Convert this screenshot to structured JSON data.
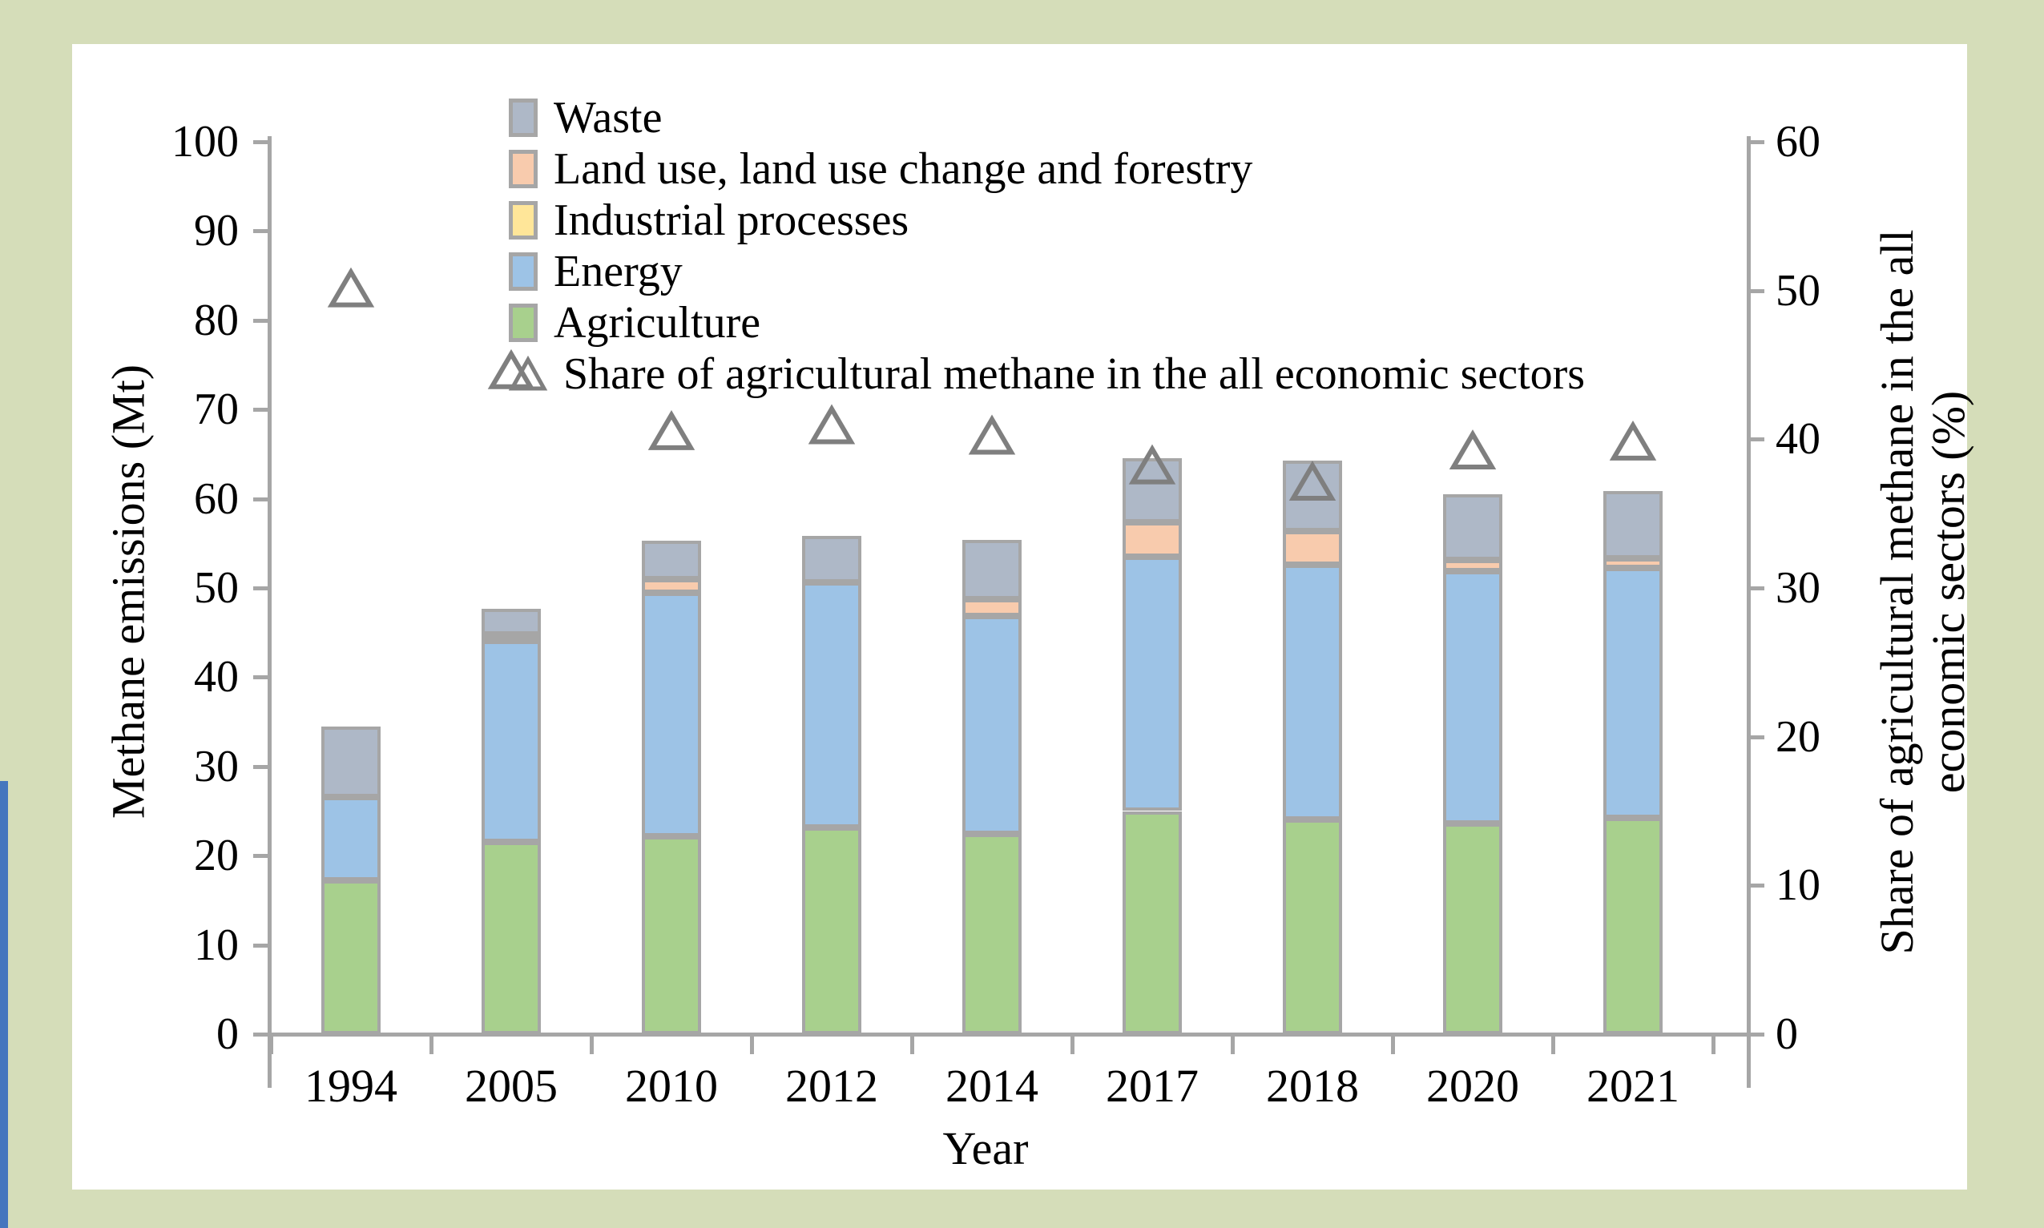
{
  "page": {
    "background": "#d5ddb9",
    "card_background": "#ffffff",
    "left_edge_accent_color": "#4576be"
  },
  "chart_data": {
    "type": "bar",
    "subtype": "stacked-bar-with-scatter-overlay",
    "title": "",
    "xlabel": "Year",
    "ylabel_left": "Methane emissions (Mt)",
    "ylabel_right_line1": "Share of agricultural methane in the all",
    "ylabel_right_line2": "economic sectors (%)",
    "categories": [
      "1994",
      "2005",
      "2010",
      "2012",
      "2014",
      "2017",
      "2018",
      "2020",
      "2021"
    ],
    "series": [
      {
        "name": "Agriculture",
        "color": "#a8d08d",
        "values": [
          17.2,
          21.5,
          22.2,
          23.2,
          22.4,
          25.0,
          24.1,
          23.6,
          24.2
        ]
      },
      {
        "name": "Energy",
        "color": "#9dc3e6",
        "values": [
          9.4,
          22.6,
          27.3,
          27.4,
          24.5,
          28.5,
          28.5,
          28.3,
          28.0
        ]
      },
      {
        "name": "Industrial processes",
        "color": "#ffe699",
        "values": [
          0,
          0,
          0,
          0,
          0,
          0,
          0,
          0,
          0
        ]
      },
      {
        "name": "Land use, land use change and forestry",
        "color": "#f8cbad",
        "values": [
          0,
          0.7,
          1.5,
          0,
          1.8,
          3.9,
          3.8,
          1.2,
          1.1
        ]
      },
      {
        "name": "Waste",
        "color": "#aeb8c7",
        "values": [
          7.9,
          2.9,
          4.3,
          5.2,
          6.7,
          7.1,
          7.9,
          7.4,
          7.6
        ]
      }
    ],
    "bar_totals": [
      34.5,
      47.7,
      55.3,
      55.8,
      55.4,
      64.5,
      64.3,
      60.5,
      60.9
    ],
    "share_series": {
      "name": "Share of agricultural methane in the all economic sectors",
      "marker": "triangle-outline",
      "color": "#7f7f7f",
      "values": [
        50.0,
        44.5,
        40.4,
        40.8,
        40.1,
        38.1,
        37.0,
        39.1,
        39.7
      ]
    },
    "left_axis": {
      "min": 0,
      "max": 100,
      "step": 10,
      "tick_labels": [
        "0",
        "10",
        "20",
        "30",
        "40",
        "50",
        "60",
        "70",
        "80",
        "90",
        "100"
      ]
    },
    "right_axis": {
      "min": 0,
      "max": 60,
      "step": 10,
      "tick_labels": [
        "0",
        "10",
        "20",
        "30",
        "40",
        "50",
        "60"
      ]
    },
    "grid": false,
    "legend_position": "top-left-inside",
    "legend": [
      {
        "label": "Waste",
        "type": "swatch",
        "color": "#aeb8c7"
      },
      {
        "label": "Land use, land use change and forestry",
        "type": "swatch",
        "color": "#f8cbad"
      },
      {
        "label": "Industrial processes",
        "type": "swatch",
        "color": "#ffe699"
      },
      {
        "label": "Energy",
        "type": "swatch",
        "color": "#9dc3e6"
      },
      {
        "label": "Agriculture",
        "type": "swatch",
        "color": "#a8d08d"
      },
      {
        "label": "Share of agricultural methane in the all economic sectors",
        "type": "triangle",
        "color": "#7f7f7f"
      }
    ],
    "bar_border_color": "#a6a6a6",
    "axis_color": "#a6a6a6"
  }
}
